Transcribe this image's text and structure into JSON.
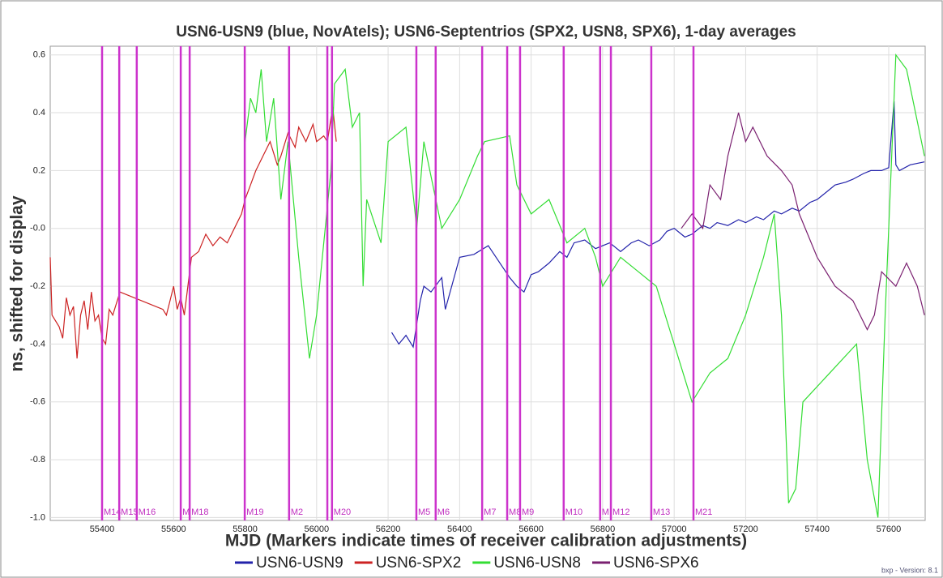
{
  "chart_data": {
    "type": "line",
    "title": "USN6-USN9 (blue, NovAtels); USN6-Septentrios (SPX2, USN8, SPX6), 1-day averages",
    "xlabel": "MJD (Markers indicate times of receiver calibration adjustments)",
    "ylabel": "ns, shifted for display",
    "footer": "bxp - Version: 8.1",
    "xlim": [
      55255,
      57702
    ],
    "ylim": [
      -1.01,
      0.63
    ],
    "xticks": [
      55400,
      55600,
      55800,
      56000,
      56200,
      56400,
      56600,
      56800,
      57000,
      57200,
      57400,
      57600
    ],
    "yticks": [
      {
        "value": -1.0,
        "label": "-1.0"
      },
      -0.8,
      -0.6,
      -0.4,
      -0.2,
      {
        "value": 0,
        "label": "-0.0"
      },
      0.2,
      0.4,
      0.6
    ],
    "grid": true,
    "legend": "bottom",
    "marker_color": "#cc33cc",
    "markers": [
      {
        "mjd": 55400,
        "label": "M14"
      },
      {
        "mjd": 55448,
        "label": "M15"
      },
      {
        "mjd": 55497,
        "label": "M16"
      },
      {
        "mjd": 55620,
        "label": "M"
      },
      {
        "mjd": 55645,
        "label": "M18"
      },
      {
        "mjd": 55799,
        "label": "M19"
      },
      {
        "mjd": 55923,
        "label": "M2"
      },
      {
        "mjd": 56030,
        "label": null
      },
      {
        "mjd": 56043,
        "label": "M20"
      },
      {
        "mjd": 56279,
        "label": "M5"
      },
      {
        "mjd": 56333,
        "label": "M6"
      },
      {
        "mjd": 56463,
        "label": "M7"
      },
      {
        "mjd": 56533,
        "label": "M8"
      },
      {
        "mjd": 56569,
        "label": "M9"
      },
      {
        "mjd": 56691,
        "label": "M10"
      },
      {
        "mjd": 56793,
        "label": "M"
      },
      {
        "mjd": 56823,
        "label": "M12"
      },
      {
        "mjd": 56936,
        "label": "M13"
      },
      {
        "mjd": 57054,
        "label": "M21"
      }
    ],
    "series": [
      {
        "name": "USN6-USN9",
        "color": "#2222aa",
        "x": [
          56210,
          56230,
          56250,
          56270,
          56290,
          56300,
          56320,
          56350,
          56360,
          56400,
          56440,
          56480,
          56540,
          56560,
          56580,
          56600,
          56620,
          56650,
          56680,
          56700,
          56720,
          56750,
          56780,
          56800,
          56820,
          56850,
          56880,
          56900,
          56930,
          56960,
          56980,
          57000,
          57030,
          57050,
          57080,
          57100,
          57120,
          57150,
          57180,
          57200,
          57230,
          57250,
          57280,
          57300,
          57330,
          57350,
          57380,
          57400,
          57430,
          57450,
          57480,
          57500,
          57530,
          57550,
          57580,
          57600,
          57615,
          57620,
          57630,
          57660,
          57700
        ],
        "values": [
          -0.36,
          -0.4,
          -0.37,
          -0.41,
          -0.25,
          -0.2,
          -0.22,
          -0.17,
          -0.28,
          -0.1,
          -0.09,
          -0.06,
          -0.17,
          -0.2,
          -0.22,
          -0.16,
          -0.15,
          -0.12,
          -0.08,
          -0.1,
          -0.05,
          -0.04,
          -0.07,
          -0.06,
          -0.05,
          -0.08,
          -0.05,
          -0.04,
          -0.06,
          -0.04,
          -0.01,
          0.0,
          -0.03,
          -0.02,
          0.01,
          0.0,
          0.02,
          0.01,
          0.03,
          0.02,
          0.04,
          0.03,
          0.06,
          0.05,
          0.07,
          0.06,
          0.09,
          0.1,
          0.13,
          0.15,
          0.16,
          0.17,
          0.19,
          0.2,
          0.2,
          0.21,
          0.44,
          0.22,
          0.2,
          0.22,
          0.23
        ]
      },
      {
        "name": "USN6-SPX2",
        "color": "#cc2222",
        "x": [
          55255,
          55260,
          55280,
          55290,
          55300,
          55310,
          55320,
          55330,
          55340,
          55350,
          55360,
          55370,
          55380,
          55390,
          55400,
          55410,
          55420,
          55430,
          55450,
          55570,
          55580,
          55590,
          55600,
          55610,
          55620,
          55630,
          55640,
          55650,
          55670,
          55690,
          55710,
          55730,
          55750,
          55770,
          55790,
          55800,
          55815,
          55830,
          55850,
          55870,
          55890,
          55900,
          55920,
          55940,
          55950,
          55970,
          55990,
          56000,
          56020,
          56030,
          56045,
          56055
        ],
        "values": [
          -0.1,
          -0.3,
          -0.34,
          -0.38,
          -0.24,
          -0.3,
          -0.27,
          -0.45,
          -0.3,
          -0.25,
          -0.35,
          -0.22,
          -0.32,
          -0.3,
          -0.38,
          -0.4,
          -0.28,
          -0.3,
          -0.22,
          -0.28,
          -0.3,
          -0.25,
          -0.2,
          -0.28,
          -0.24,
          -0.3,
          -0.2,
          -0.1,
          -0.08,
          -0.02,
          -0.06,
          -0.03,
          -0.05,
          0.0,
          0.05,
          0.1,
          0.15,
          0.2,
          0.25,
          0.3,
          0.22,
          0.25,
          0.33,
          0.28,
          0.35,
          0.3,
          0.36,
          0.3,
          0.32,
          0.3,
          0.42,
          0.3
        ]
      },
      {
        "name": "USN6-USN8",
        "color": "#33dd33",
        "x": [
          55800,
          55815,
          55830,
          55845,
          55860,
          55880,
          55900,
          55920,
          55950,
          55980,
          56000,
          56040,
          56050,
          56080,
          56100,
          56120,
          56130,
          56140,
          56180,
          56200,
          56250,
          56280,
          56300,
          56350,
          56400,
          56450,
          56470,
          56540,
          56560,
          56600,
          56650,
          56700,
          56750,
          56780,
          56800,
          56850,
          56900,
          56950,
          57050,
          57100,
          57150,
          57200,
          57250,
          57280,
          57300,
          57320,
          57340,
          57360,
          57510,
          57540,
          57570,
          57590,
          57600,
          57620,
          57650,
          57700
        ],
        "values": [
          0.3,
          0.45,
          0.4,
          0.55,
          0.3,
          0.45,
          0.1,
          0.3,
          -0.1,
          -0.45,
          -0.3,
          0.2,
          0.5,
          0.55,
          0.35,
          0.4,
          -0.2,
          0.1,
          -0.05,
          0.3,
          0.35,
          0.0,
          0.3,
          0.0,
          0.1,
          0.25,
          0.3,
          0.32,
          0.15,
          0.05,
          0.1,
          -0.05,
          0.0,
          -0.1,
          -0.2,
          -0.1,
          -0.15,
          -0.2,
          -0.6,
          -0.5,
          -0.45,
          -0.3,
          -0.1,
          0.05,
          -0.3,
          -0.95,
          -0.9,
          -0.6,
          -0.4,
          -0.8,
          -1.0,
          -0.3,
          0.0,
          0.6,
          0.55,
          0.25
        ]
      },
      {
        "name": "USN6-SPX6",
        "color": "#7a2070",
        "x": [
          57020,
          57050,
          57080,
          57100,
          57130,
          57150,
          57180,
          57200,
          57220,
          57260,
          57300,
          57330,
          57350,
          57400,
          57450,
          57500,
          57540,
          57560,
          57580,
          57620,
          57650,
          57680,
          57700
        ],
        "values": [
          0.0,
          0.05,
          0.0,
          0.15,
          0.1,
          0.25,
          0.4,
          0.3,
          0.35,
          0.25,
          0.2,
          0.15,
          0.05,
          -0.1,
          -0.2,
          -0.25,
          -0.35,
          -0.3,
          -0.15,
          -0.2,
          -0.12,
          -0.2,
          -0.3
        ]
      }
    ]
  }
}
